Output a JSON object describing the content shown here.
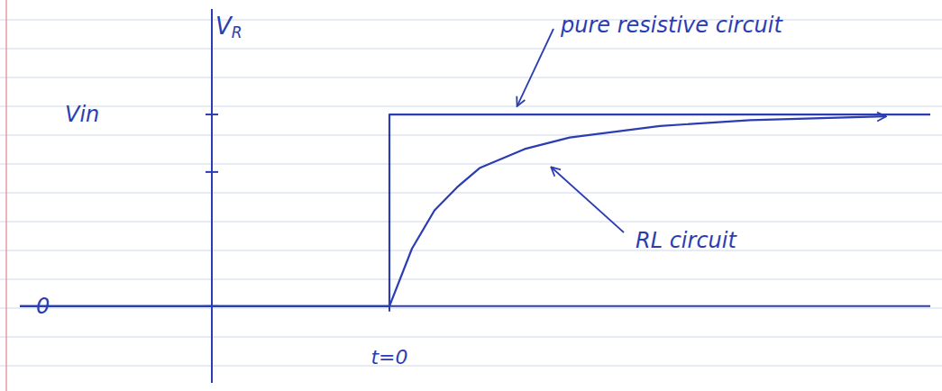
{
  "chart_data": {
    "type": "line",
    "ylabel": "VR",
    "xlim": [
      -4.1,
      6.0
    ],
    "ylim": [
      -0.4,
      1.55
    ],
    "xticks": [
      {
        "value": 0,
        "label": "t=0"
      }
    ],
    "yticks": [
      0,
      {
        "value": 0.7,
        "label": null
      },
      {
        "value": 1,
        "label": "Vin"
      }
    ],
    "series": [
      {
        "name": "pure resistive circuit",
        "color": "#2b3db3",
        "x": [
          -4.1,
          0,
          0,
          6.0
        ],
        "values": [
          0,
          0,
          1,
          1
        ]
      },
      {
        "name": "RL circuit",
        "color": "#2b3db3",
        "x": [
          0,
          0.25,
          0.5,
          0.75,
          1,
          1.5,
          2,
          3,
          4,
          5.5
        ],
        "values": [
          0,
          0.3,
          0.5,
          0.62,
          0.72,
          0.82,
          0.88,
          0.94,
          0.97,
          0.99
        ]
      }
    ]
  }
}
